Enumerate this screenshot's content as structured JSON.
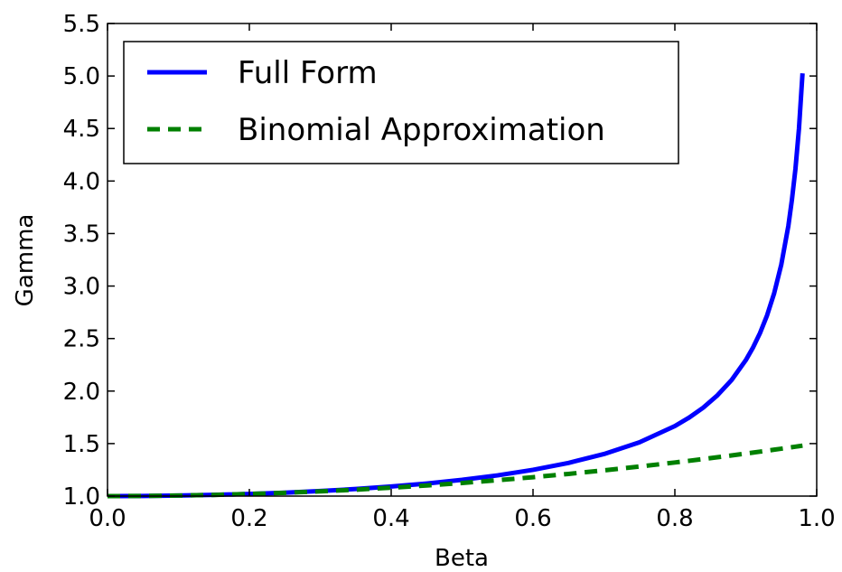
{
  "chart_data": {
    "type": "line",
    "xlabel": "Beta",
    "ylabel": "Gamma",
    "xlim": [
      0.0,
      1.0
    ],
    "ylim": [
      1.0,
      5.5
    ],
    "xticks": [
      "0.0",
      "0.2",
      "0.4",
      "0.6",
      "0.8",
      "1.0"
    ],
    "yticks": [
      "1.0",
      "1.5",
      "2.0",
      "2.5",
      "3.0",
      "3.5",
      "4.0",
      "4.5",
      "5.0",
      "5.5"
    ],
    "grid": false,
    "legend_position": "upper-left",
    "x": [
      0.0,
      0.05,
      0.1,
      0.15,
      0.2,
      0.25,
      0.3,
      0.35,
      0.4,
      0.45,
      0.5,
      0.55,
      0.6,
      0.65,
      0.7,
      0.75,
      0.8,
      0.82,
      0.84,
      0.86,
      0.88,
      0.9,
      0.91,
      0.92,
      0.93,
      0.94,
      0.95,
      0.96,
      0.965,
      0.97,
      0.975,
      0.98
    ],
    "series": [
      {
        "name": "Full Form",
        "color": "#0000ff",
        "style": "solid",
        "values": [
          1.0,
          1.0013,
          1.005,
          1.0114,
          1.0206,
          1.0328,
          1.0483,
          1.0675,
          1.0911,
          1.1198,
          1.1547,
          1.1974,
          1.25,
          1.3159,
          1.4003,
          1.5119,
          1.6667,
          1.7471,
          1.8421,
          1.9596,
          2.1054,
          2.2942,
          2.4119,
          2.5516,
          2.7206,
          2.931,
          3.2026,
          3.5714,
          3.8183,
          4.1134,
          4.5004,
          5.0252
        ]
      },
      {
        "name": "Binomial Approximation",
        "color": "#008000",
        "style": "dashed",
        "values": [
          1.0,
          1.00125,
          1.005,
          1.01125,
          1.02,
          1.03125,
          1.045,
          1.06125,
          1.08,
          1.10125,
          1.125,
          1.15125,
          1.18,
          1.21125,
          1.245,
          1.28125,
          1.32,
          1.3362,
          1.3528,
          1.3698,
          1.3872,
          1.405,
          1.41405,
          1.4232,
          1.43245,
          1.4418,
          1.45125,
          1.4608,
          1.46561,
          1.47045,
          1.47531,
          1.4802
        ]
      }
    ]
  }
}
